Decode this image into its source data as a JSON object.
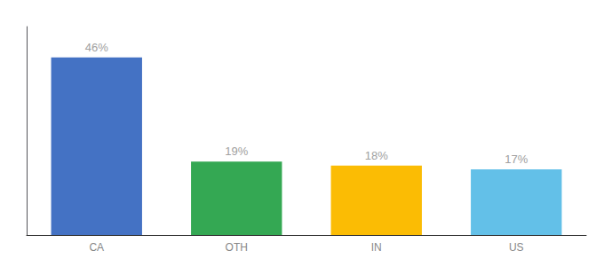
{
  "chart_data": {
    "type": "bar",
    "categories": [
      "CA",
      "OTH",
      "IN",
      "US"
    ],
    "values": [
      46,
      19,
      18,
      17
    ],
    "value_labels": [
      "46%",
      "19%",
      "18%",
      "17%"
    ],
    "colors": [
      "#4472C4",
      "#34A853",
      "#FBBC04",
      "#63C0E8"
    ],
    "ylim": [
      0,
      54
    ],
    "yticks": [],
    "grid": false,
    "tick_labels": "x",
    "data_labels": true
  }
}
